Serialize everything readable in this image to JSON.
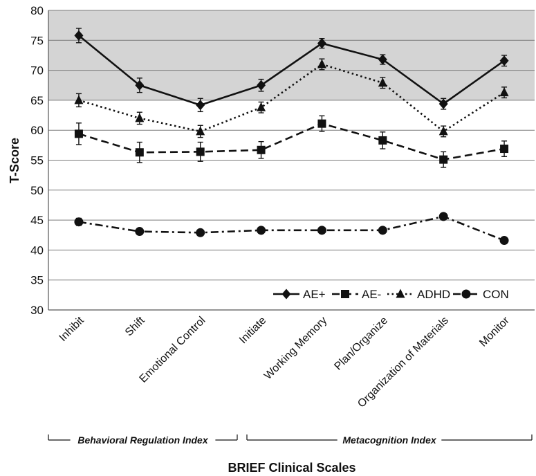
{
  "chart_data": {
    "type": "line",
    "xlabel": "BRIEF Clinical Scales",
    "ylabel": "T-Score",
    "ylim": [
      30,
      80
    ],
    "yticks": [
      30,
      35,
      40,
      45,
      50,
      55,
      60,
      65,
      70,
      75,
      80
    ],
    "shaded_range": [
      65,
      80
    ],
    "grid": true,
    "legend_position": "bottom-right",
    "categories": [
      "Inhibit",
      "Shift",
      "Emotional Control",
      "Initiate",
      "Working Memory",
      "Plan/Organize",
      "Organization of Materials",
      "Monitor"
    ],
    "groups": [
      {
        "label": "Behavioral Regulation Index",
        "from": 0,
        "to": 2
      },
      {
        "label": "Metacognition Index",
        "from": 3,
        "to": 7
      }
    ],
    "series": [
      {
        "name": "AE+",
        "marker": "diamond",
        "line": "solid",
        "values": [
          75.8,
          67.5,
          64.2,
          67.5,
          74.5,
          71.8,
          64.4,
          71.6
        ],
        "errors": [
          1.2,
          1.2,
          1.1,
          1.0,
          0.8,
          0.8,
          0.9,
          0.9
        ]
      },
      {
        "name": "AE-",
        "marker": "square",
        "line": "dashed",
        "values": [
          59.4,
          56.3,
          56.4,
          56.7,
          61.1,
          58.3,
          55.1,
          56.9
        ],
        "errors": [
          1.8,
          1.7,
          1.6,
          1.4,
          1.3,
          1.4,
          1.3,
          1.3
        ]
      },
      {
        "name": "ADHD",
        "marker": "triangle",
        "line": "dotted",
        "values": [
          65.0,
          62.0,
          59.8,
          63.8,
          71.0,
          67.9,
          59.8,
          66.3
        ],
        "errors": [
          1.1,
          1.0,
          1.0,
          0.9,
          0.9,
          0.9,
          0.9,
          0.9
        ]
      },
      {
        "name": "CON",
        "marker": "circle",
        "line": "dashdot",
        "values": [
          44.7,
          43.1,
          42.9,
          43.3,
          43.3,
          43.3,
          45.6,
          41.6
        ],
        "errors": [
          0.6,
          0.5,
          0.5,
          0.5,
          0.5,
          0.5,
          0.5,
          0.4
        ]
      }
    ]
  }
}
